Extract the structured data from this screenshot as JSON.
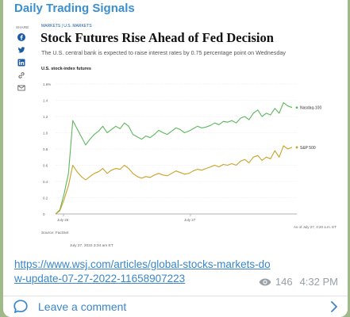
{
  "channel": {
    "name": "Daily Trading Signals"
  },
  "article": {
    "share_label": "SHARE",
    "section_tags": "MARKETS | U.S. MARKETS",
    "headline": "Stock Futures Rise Ahead of Fed Decision",
    "dek": "The U.S. central bank is expected to raise interest rates by 0.75 percentage point on Wednesday",
    "source": "Source: FactSet",
    "timestamp_note": "July 27, 2022 3:34 am ET",
    "as_of": "As of July 27, 4:20 a.m. ET"
  },
  "chart_data": {
    "type": "line",
    "title": "U.S. stock-index futures",
    "y_unit_label": "1.6%",
    "yticks": [
      "1.6%",
      "1.4",
      "1.2",
      "1.0",
      "0.8",
      "0.6",
      "0.4",
      "0.2",
      "0"
    ],
    "ylim": [
      0,
      1.6
    ],
    "xticks": [
      "July 26",
      "July 27"
    ],
    "series": [
      {
        "name": "Nasdaq-100",
        "color": "#5cb85c",
        "values": [
          0.0,
          0.05,
          0.25,
          0.5,
          1.15,
          1.05,
          0.95,
          0.85,
          0.92,
          0.98,
          1.02,
          1.08,
          1.0,
          1.04,
          1.08,
          1.05,
          1.12,
          1.08,
          0.98,
          0.95,
          0.92,
          0.96,
          0.94,
          0.98,
          1.03,
          1.0,
          0.98,
          1.02,
          1.06,
          1.04,
          1.0,
          1.02,
          1.05,
          1.08,
          1.06,
          1.07,
          1.09,
          1.12,
          1.1,
          1.14,
          1.13,
          1.15,
          1.12,
          1.18,
          1.2,
          1.16,
          1.24,
          1.28,
          1.2,
          1.24,
          1.22,
          1.3,
          1.24,
          1.37,
          1.33,
          1.31
        ]
      },
      {
        "name": "S&P 500",
        "color": "#c9a227",
        "values": [
          0.0,
          0.04,
          0.18,
          0.35,
          0.6,
          0.52,
          0.46,
          0.42,
          0.46,
          0.5,
          0.52,
          0.56,
          0.5,
          0.54,
          0.56,
          0.55,
          0.6,
          0.56,
          0.5,
          0.46,
          0.44,
          0.46,
          0.45,
          0.48,
          0.5,
          0.48,
          0.47,
          0.5,
          0.53,
          0.51,
          0.49,
          0.5,
          0.53,
          0.55,
          0.54,
          0.56,
          0.58,
          0.6,
          0.58,
          0.61,
          0.6,
          0.62,
          0.6,
          0.65,
          0.67,
          0.63,
          0.7,
          0.72,
          0.66,
          0.7,
          0.68,
          0.78,
          0.7,
          0.84,
          0.8,
          0.82
        ]
      }
    ],
    "grid": true,
    "legend": "right-end-labels"
  },
  "message": {
    "link": "https://www.wsj.com/articles/global-stocks-markets-dow-update-07-27-2022-11658907223",
    "views": "146",
    "time": "4:32 PM"
  },
  "footer": {
    "comment_label": "Leave a comment"
  },
  "icons": {
    "facebook": "facebook-icon",
    "twitter": "twitter-icon",
    "linkedin": "linkedin-icon",
    "link": "link-icon",
    "email": "email-icon",
    "views": "eye-icon",
    "comment": "comment-bubble-icon",
    "chevron": "chevron-right-icon"
  },
  "colors": {
    "accent": "#3a86c9",
    "background": "#9fb98a",
    "nasdaq": "#5cb85c",
    "sp500": "#c9a227"
  }
}
